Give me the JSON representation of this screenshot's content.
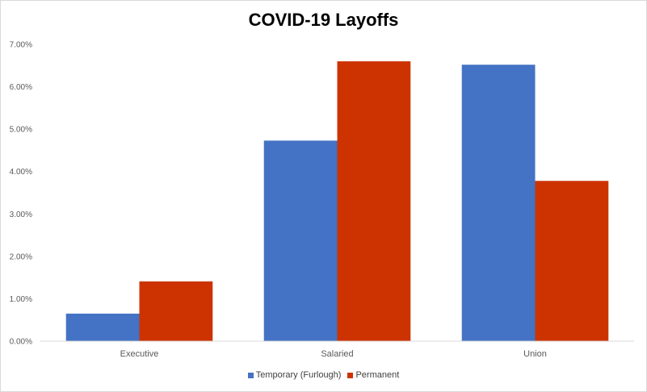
{
  "chart_data": {
    "type": "bar",
    "title": "COVID-19 Layoffs",
    "xlabel": "",
    "ylabel": "",
    "categories": [
      "Executive",
      "Salaried",
      "Union"
    ],
    "series": [
      {
        "name": "Temporary (Furlough)",
        "color": "#4472c4",
        "values": [
          0.0065,
          0.0473,
          0.0652
        ]
      },
      {
        "name": "Permanent",
        "color": "#cc3300",
        "values": [
          0.0141,
          0.066,
          0.0378
        ]
      }
    ],
    "ylim": [
      0,
      0.07
    ],
    "yticks": [
      0,
      0.01,
      0.02,
      0.03,
      0.04,
      0.05,
      0.06,
      0.07
    ],
    "ytick_labels": [
      "0.00%",
      "1.00%",
      "2.00%",
      "3.00%",
      "4.00%",
      "5.00%",
      "6.00%",
      "7.00%"
    ],
    "grid": false,
    "legend_position": "bottom"
  }
}
